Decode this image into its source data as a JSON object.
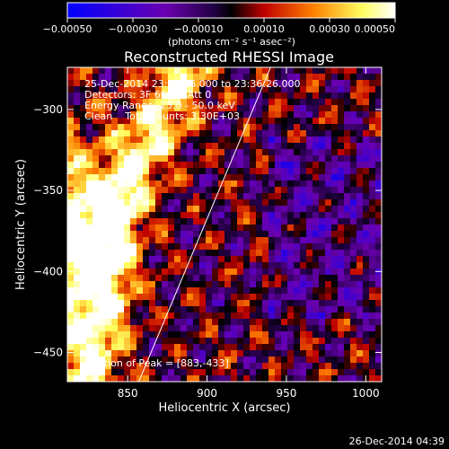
{
  "chart_data": {
    "type": "heatmap",
    "title": "Reconstructed RHESSI Image",
    "xlabel": "Heliocentric X (arcsec)",
    "ylabel": "Heliocentric Y (arcsec)",
    "xlim": [
      812,
      1010
    ],
    "ylim": [
      -468,
      -274
    ],
    "xticks": [
      850,
      900,
      950,
      1000
    ],
    "xtick_labels": [
      "850",
      "900",
      "950",
      "1000"
    ],
    "yticks": [
      -300,
      -350,
      -400,
      -450
    ],
    "ytick_labels": [
      "−300",
      "−350",
      "−400",
      "−450"
    ],
    "colorbar": {
      "min": -0.0005,
      "max": 0.0005,
      "ticks": [
        -0.0005,
        -0.0003,
        -0.0001,
        0.0001,
        0.0003,
        0.0005
      ],
      "tick_labels": [
        "−0.00050",
        "−0.00030",
        "−0.00010",
        "0.00010",
        "0.00030",
        "0.00050"
      ],
      "unit_label": "(photons cm⁻² s⁻¹ asec⁻²)"
    },
    "annotations": {
      "time_range": "25-Dec-2014 23:30:26.000 to 23:36:26.000",
      "detectors": "Detectors: 3F 6F 9F, Att 0",
      "energy_range": "Energy Range: 25.0 - 50.0 keV",
      "algorithm": "Clean    Total counts: 3.30E+03",
      "peak_position": "Position of Peak = [883,-433]"
    },
    "limb_line": {
      "x": [
        857,
        940
      ],
      "y": [
        -468,
        -274
      ]
    },
    "colors": {
      "background": "#000000",
      "text": "#ffffff",
      "colormap": [
        "#0000ff",
        "#6a00b0",
        "#200040",
        "#000000",
        "#ff0000",
        "#ffa000",
        "#ffff80",
        "#ffffff"
      ]
    }
  },
  "footer": {
    "date": "26-Dec-2014 04:39"
  }
}
